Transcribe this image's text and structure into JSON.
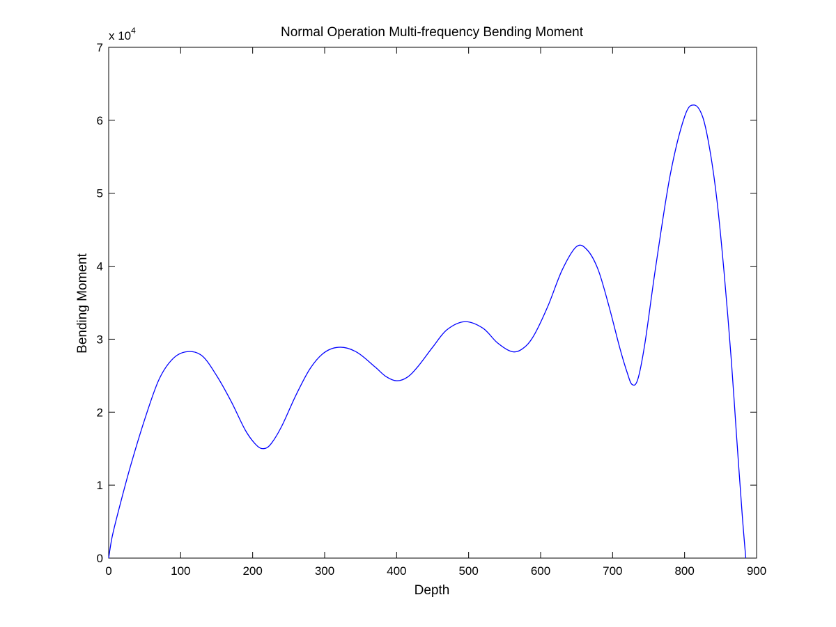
{
  "chart_data": {
    "type": "line",
    "title": "Normal Operation Multi-frequency Bending Moment",
    "xlabel": "Depth",
    "ylabel": "Bending Moment",
    "y_multiplier_text": "x 10",
    "y_multiplier_exponent": "4",
    "xlim": [
      0,
      900
    ],
    "ylim": [
      0,
      70000
    ],
    "x_ticks": [
      0,
      100,
      200,
      300,
      400,
      500,
      600,
      700,
      800,
      900
    ],
    "y_ticks": [
      0,
      1,
      2,
      3,
      4,
      5,
      6,
      7
    ],
    "grid": false,
    "series_color": "#0000ff",
    "series": [
      {
        "x": [
          0,
          5,
          15,
          30,
          50,
          70,
          90,
          110,
          130,
          150,
          170,
          190,
          205,
          215,
          225,
          240,
          260,
          280,
          300,
          322,
          345,
          370,
          385,
          400,
          415,
          430,
          450,
          470,
          495,
          520,
          540,
          560,
          575,
          590,
          610,
          630,
          650,
          665,
          680,
          695,
          710,
          720,
          727,
          735,
          745,
          760,
          780,
          800,
          813,
          825,
          835,
          845,
          855,
          865,
          872,
          880,
          885
        ],
        "y": [
          0,
          3000,
          7000,
          12500,
          19000,
          24500,
          27400,
          28300,
          27700,
          25000,
          21500,
          17500,
          15500,
          15000,
          15600,
          18000,
          22300,
          26000,
          28200,
          28900,
          28200,
          26200,
          24900,
          24300,
          24800,
          26300,
          28900,
          31300,
          32400,
          31500,
          29500,
          28300,
          28700,
          30400,
          34500,
          39500,
          42700,
          42200,
          39500,
          34500,
          28800,
          25500,
          23800,
          24500,
          29500,
          40000,
          52500,
          60500,
          62100,
          60500,
          56000,
          49000,
          39000,
          27000,
          17000,
          6000,
          0
        ]
      }
    ]
  }
}
